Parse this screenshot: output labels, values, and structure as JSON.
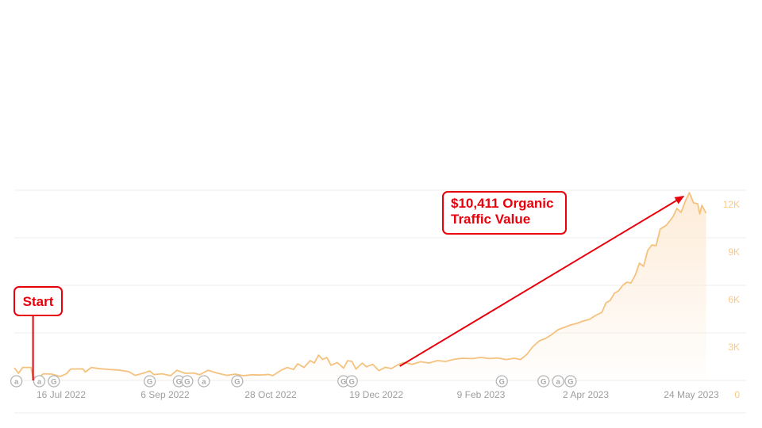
{
  "chart_data": {
    "type": "area",
    "title": "",
    "xlabel": "",
    "ylabel": "",
    "x_ticks": [
      "16 Jul 2022",
      "6 Sep 2022",
      "28 Oct 2022",
      "19 Dec 2022",
      "9 Feb 2023",
      "2 Apr 2023",
      "24 May 2023"
    ],
    "y_ticks": [
      "12K",
      "9K",
      "6K",
      "3K",
      "0"
    ],
    "ylim": [
      0,
      12000
    ],
    "xlim": [
      "2022-06-26",
      "2023-05-28"
    ],
    "grid": true,
    "colors": {
      "line": "#f5c27e",
      "fill": "#fdebd7",
      "ticks": "#9e9e9e",
      "yticks": "#f7c98a",
      "annotation": "#e8000b"
    },
    "series": [
      {
        "points": [
          [
            "2022-06-26",
            800
          ],
          [
            "2022-06-28",
            450
          ],
          [
            "2022-06-30",
            820
          ],
          [
            "2022-07-04",
            820
          ],
          [
            "2022-07-05",
            200
          ],
          [
            "2022-07-08",
            230
          ],
          [
            "2022-07-10",
            420
          ],
          [
            "2022-07-14",
            400
          ],
          [
            "2022-07-18",
            250
          ],
          [
            "2022-07-21",
            420
          ],
          [
            "2022-07-23",
            720
          ],
          [
            "2022-07-29",
            730
          ],
          [
            "2022-07-30",
            530
          ],
          [
            "2022-08-02",
            820
          ],
          [
            "2022-08-06",
            740
          ],
          [
            "2022-08-10",
            700
          ],
          [
            "2022-08-16",
            640
          ],
          [
            "2022-08-20",
            550
          ],
          [
            "2022-08-23",
            320
          ],
          [
            "2022-08-27",
            460
          ],
          [
            "2022-08-30",
            600
          ],
          [
            "2022-09-01",
            370
          ],
          [
            "2022-09-05",
            420
          ],
          [
            "2022-09-09",
            300
          ],
          [
            "2022-09-12",
            640
          ],
          [
            "2022-09-16",
            450
          ],
          [
            "2022-09-20",
            470
          ],
          [
            "2022-09-23",
            360
          ],
          [
            "2022-09-27",
            640
          ],
          [
            "2022-10-01",
            480
          ],
          [
            "2022-10-06",
            320
          ],
          [
            "2022-10-10",
            400
          ],
          [
            "2022-10-14",
            300
          ],
          [
            "2022-10-18",
            360
          ],
          [
            "2022-10-22",
            340
          ],
          [
            "2022-10-26",
            380
          ],
          [
            "2022-10-28",
            300
          ],
          [
            "2022-11-01",
            640
          ],
          [
            "2022-11-04",
            820
          ],
          [
            "2022-11-07",
            690
          ],
          [
            "2022-11-09",
            1050
          ],
          [
            "2022-11-12",
            820
          ],
          [
            "2022-11-15",
            1250
          ],
          [
            "2022-11-17",
            1100
          ],
          [
            "2022-11-19",
            1600
          ],
          [
            "2022-11-21",
            1320
          ],
          [
            "2022-11-23",
            1450
          ],
          [
            "2022-11-25",
            960
          ],
          [
            "2022-11-28",
            1130
          ],
          [
            "2022-12-01",
            780
          ],
          [
            "2022-12-03",
            1250
          ],
          [
            "2022-12-05",
            1200
          ],
          [
            "2022-12-07",
            720
          ],
          [
            "2022-12-10",
            1100
          ],
          [
            "2022-12-12",
            860
          ],
          [
            "2022-12-15",
            1020
          ],
          [
            "2022-12-18",
            620
          ],
          [
            "2022-12-21",
            830
          ],
          [
            "2022-12-24",
            750
          ],
          [
            "2022-12-27",
            980
          ],
          [
            "2022-12-30",
            1130
          ],
          [
            "2023-01-03",
            1020
          ],
          [
            "2023-01-07",
            1180
          ],
          [
            "2023-01-11",
            1100
          ],
          [
            "2023-01-15",
            1250
          ],
          [
            "2023-01-19",
            1200
          ],
          [
            "2023-01-23",
            1330
          ],
          [
            "2023-01-27",
            1400
          ],
          [
            "2023-02-01",
            1380
          ],
          [
            "2023-02-05",
            1450
          ],
          [
            "2023-02-09",
            1380
          ],
          [
            "2023-02-13",
            1420
          ],
          [
            "2023-02-17",
            1320
          ],
          [
            "2023-02-21",
            1400
          ],
          [
            "2023-02-24",
            1320
          ],
          [
            "2023-02-27",
            1650
          ],
          [
            "2023-03-02",
            2150
          ],
          [
            "2023-03-05",
            2500
          ],
          [
            "2023-03-08",
            2650
          ],
          [
            "2023-03-11",
            2900
          ],
          [
            "2023-03-14",
            3200
          ],
          [
            "2023-03-17",
            3350
          ],
          [
            "2023-03-20",
            3500
          ],
          [
            "2023-03-23",
            3600
          ],
          [
            "2023-03-26",
            3750
          ],
          [
            "2023-03-29",
            3850
          ],
          [
            "2023-04-01",
            4100
          ],
          [
            "2023-04-04",
            4300
          ],
          [
            "2023-04-06",
            4900
          ],
          [
            "2023-04-08",
            5050
          ],
          [
            "2023-04-10",
            5500
          ],
          [
            "2023-04-12",
            5650
          ],
          [
            "2023-04-14",
            6000
          ],
          [
            "2023-04-16",
            6200
          ],
          [
            "2023-04-18",
            6150
          ],
          [
            "2023-04-20",
            6650
          ],
          [
            "2023-04-22",
            7400
          ],
          [
            "2023-04-24",
            7200
          ],
          [
            "2023-04-26",
            8200
          ],
          [
            "2023-04-28",
            8550
          ],
          [
            "2023-04-30",
            8500
          ],
          [
            "2023-05-02",
            9550
          ],
          [
            "2023-05-05",
            9800
          ],
          [
            "2023-05-08",
            10300
          ],
          [
            "2023-05-10",
            10850
          ],
          [
            "2023-05-12",
            10600
          ],
          [
            "2023-05-14",
            11300
          ],
          [
            "2023-05-16",
            11850
          ],
          [
            "2023-05-18",
            11200
          ],
          [
            "2023-05-20",
            11150
          ],
          [
            "2023-05-21",
            10500
          ],
          [
            "2023-05-22",
            11050
          ],
          [
            "2023-05-23",
            10800
          ],
          [
            "2023-05-24",
            10550
          ]
        ]
      }
    ],
    "event_markers": [
      {
        "date": "2022-06-27",
        "icon": "a"
      },
      {
        "date": "2022-07-08",
        "icon": "a"
      },
      {
        "date": "2022-07-15",
        "icon": "G"
      },
      {
        "date": "2022-08-30",
        "icon": "G"
      },
      {
        "date": "2022-09-13",
        "icon": "G"
      },
      {
        "date": "2022-09-17",
        "icon": "G"
      },
      {
        "date": "2022-09-25",
        "icon": "a"
      },
      {
        "date": "2022-10-11",
        "icon": "G"
      },
      {
        "date": "2022-12-01",
        "icon": "G"
      },
      {
        "date": "2022-12-05",
        "icon": "G"
      },
      {
        "date": "2023-02-15",
        "icon": "G"
      },
      {
        "date": "2023-03-07",
        "icon": "G"
      },
      {
        "date": "2023-03-14",
        "icon": "a"
      },
      {
        "date": "2023-03-20",
        "icon": "G"
      }
    ],
    "annotations": [
      {
        "label": "Start",
        "target": [
          "2022-07-05",
          200
        ]
      },
      {
        "label": "$10,411 Organic Traffic Value",
        "arrow_from": [
          "2022-12-28",
          900
        ],
        "target": [
          "2023-05-13",
          11600
        ]
      }
    ]
  },
  "callouts": {
    "value_line1": "$10,411 Organic",
    "value_line2": "Traffic Value",
    "start": "Start"
  }
}
